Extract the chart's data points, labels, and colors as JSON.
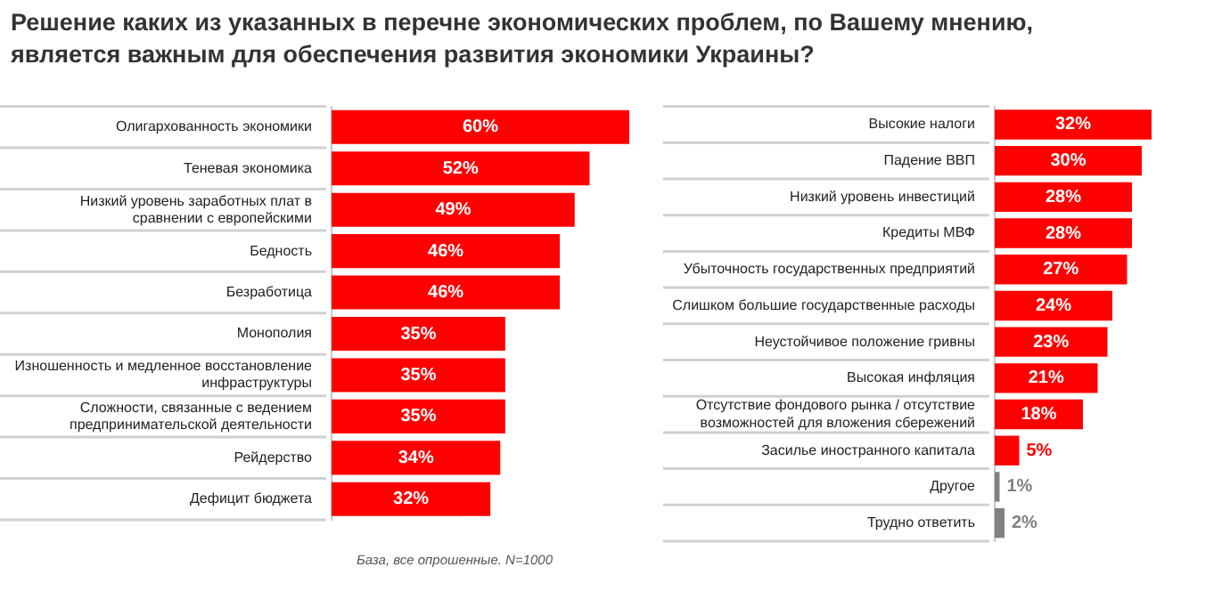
{
  "chart_data": [
    {
      "type": "bar",
      "orientation": "horizontal",
      "title": "Решение каких из указанных в перечне экономических проблем, по Вашему мнению, является важным для обеспечения развития экономики Украины?",
      "categories": [
        "Олигархованность экономики",
        "Теневая экономика",
        "Низкий уровень заработных плат в сравнении с европейскими",
        "Бедность",
        "Безработица",
        "Монополия",
        "Изношенность и медленное восстановление инфраструктуры",
        "Сложности, связанные с ведением предпринимательской деятельности",
        "Рейдерство",
        "Дефицит бюджета"
      ],
      "values": [
        60,
        52,
        49,
        46,
        46,
        35,
        35,
        35,
        34,
        32
      ],
      "color": "#ff0000",
      "value_labels": [
        "60%",
        "52%",
        "49%",
        "46%",
        "46%",
        "35%",
        "35%",
        "35%",
        "34%",
        "32%"
      ],
      "xlim": [
        0,
        60
      ],
      "tick_labels": "y",
      "legend": false,
      "annotations": [
        "База, все опрошенные. N=1000"
      ]
    },
    {
      "type": "bar",
      "orientation": "horizontal",
      "categories": [
        "Высокие налоги",
        "Падение ВВП",
        "Низкий уровень инвестиций",
        "Кредиты МВФ",
        "Убыточность государственных предприятий",
        "Слишком большие государственные расходы",
        "Неустойчивое положение гривны",
        "Высокая инфляция",
        "Отсутствие фондового рынка / отсутствие возможностей для вложения сбережений",
        "Засилье иностранного капитала",
        "Другое",
        "Трудно ответить"
      ],
      "values": [
        32,
        30,
        28,
        28,
        27,
        24,
        23,
        21,
        18,
        5,
        1,
        2
      ],
      "colors": [
        "#ff0000",
        "#ff0000",
        "#ff0000",
        "#ff0000",
        "#ff0000",
        "#ff0000",
        "#ff0000",
        "#ff0000",
        "#ff0000",
        "#ff0000",
        "#808080",
        "#808080"
      ],
      "value_labels": [
        "32%",
        "30%",
        "28%",
        "28%",
        "27%",
        "24%",
        "23%",
        "21%",
        "18%",
        "5%",
        "1%",
        "2%"
      ],
      "tick_labels": "y",
      "legend": false
    }
  ]
}
